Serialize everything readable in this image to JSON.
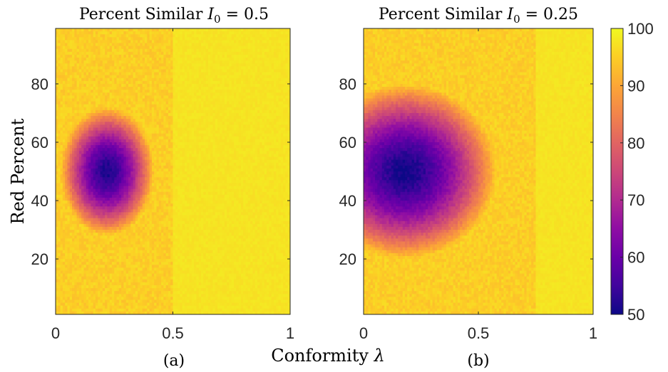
{
  "chart_data": {
    "type": "heatmap",
    "panels": [
      {
        "id": "a",
        "title": "Percent Similar I_0 = 0.5",
        "title_text": "Percent Similar ",
        "title_symbol": "I",
        "title_subscript": "0",
        "title_value": " = 0.5",
        "panel_label": "(a)",
        "threshold": 0.5,
        "min_value": 51,
        "center": [
          0.22,
          50
        ],
        "spread": [
          0.2,
          22
        ]
      },
      {
        "id": "b",
        "title": "Percent Similar I_0 = 0.25",
        "title_text": "Percent Similar ",
        "title_symbol": "I",
        "title_subscript": "0",
        "title_value": " = 0.25",
        "panel_label": "(b)",
        "threshold": 0.75,
        "min_value": 50,
        "center": [
          0.18,
          50
        ],
        "spread": [
          0.4,
          30
        ]
      }
    ],
    "xlabel_text": "Conformity ",
    "xlabel_symbol": "λ",
    "ylabel": "Red Percent",
    "xlim": [
      0,
      1
    ],
    "ylim": [
      1,
      99
    ],
    "x_ticks": [
      0,
      0.5,
      1
    ],
    "x_tick_labels": [
      "0",
      "0.5",
      "1"
    ],
    "y_ticks": [
      20,
      40,
      60,
      80
    ],
    "y_tick_labels": [
      "20",
      "40",
      "60",
      "80"
    ],
    "colorbar": {
      "range": [
        50,
        100
      ],
      "ticks": [
        50,
        60,
        70,
        80,
        90,
        100
      ],
      "tick_labels": [
        "50",
        "60",
        "70",
        "80",
        "90",
        "100"
      ],
      "colormap": "plasma"
    }
  }
}
